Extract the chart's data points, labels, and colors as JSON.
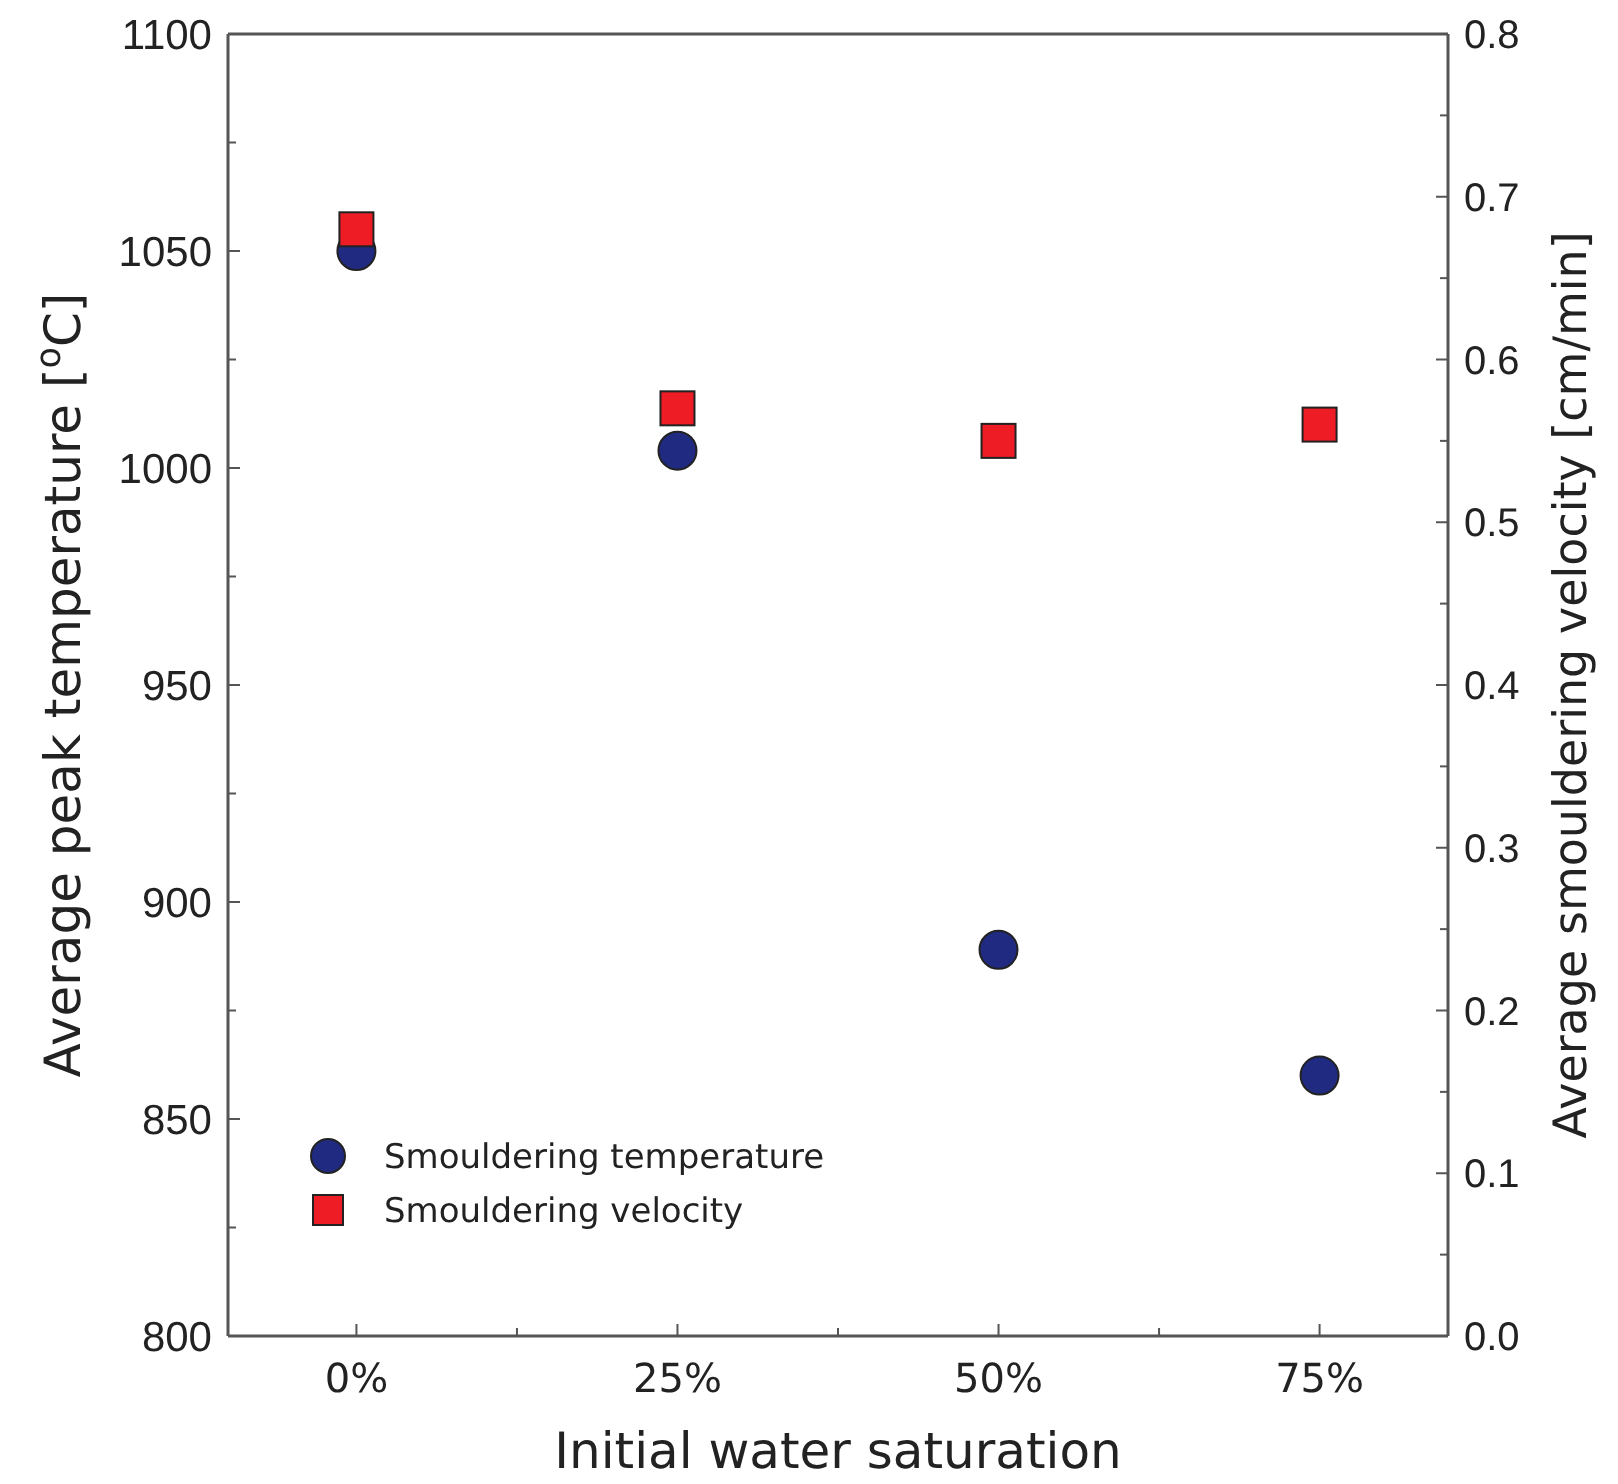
{
  "chart_data": {
    "type": "scatter",
    "xlabel": "Initial water saturation",
    "ylabel": "Average peak temperature [$^{o}$C]",
    "y2label": "Average smouldering velocity [cm/min]",
    "x": [
      0,
      25,
      50,
      75
    ],
    "xlim": [
      -10,
      85
    ],
    "xticks": [
      {
        "value": 0,
        "label": "0%"
      },
      {
        "value": 12.5,
        "label": null
      },
      {
        "value": 25,
        "label": "25%"
      },
      {
        "value": 37.5,
        "label": null
      },
      {
        "value": 50,
        "label": "50%"
      },
      {
        "value": 62.5,
        "label": null
      },
      {
        "value": 75,
        "label": "75%"
      }
    ],
    "ylim": [
      800,
      1100
    ],
    "yticks": [
      800,
      {
        "value": 825,
        "label": null
      },
      850,
      {
        "value": 875,
        "label": null
      },
      900,
      {
        "value": 925,
        "label": null
      },
      950,
      {
        "value": 975,
        "label": null
      },
      1000,
      {
        "value": 1025,
        "label": null
      },
      1050,
      {
        "value": 1075,
        "label": null
      },
      1100
    ],
    "y2lim": [
      0,
      0.8
    ],
    "y2ticks": [
      {
        "value": 0,
        "label": "0.0"
      },
      {
        "value": 0.05,
        "label": null
      },
      0.1,
      {
        "value": 0.15,
        "label": null
      },
      0.2,
      {
        "value": 0.25,
        "label": null
      },
      0.3,
      {
        "value": 0.35,
        "label": null
      },
      0.4,
      {
        "value": 0.45,
        "label": null
      },
      0.5,
      {
        "value": 0.55,
        "label": null
      },
      0.6,
      {
        "value": 0.65,
        "label": null
      },
      0.7,
      {
        "value": 0.75,
        "label": null
      },
      0.8
    ],
    "legend": "bottom left",
    "grid": false,
    "series": [
      {
        "name": "Smouldering temperature",
        "color": "#1f2a80",
        "marker": "circle",
        "values": [
          1050,
          1004,
          889,
          860
        ]
      },
      {
        "name": "Smouldering velocity",
        "color": "#ee1c25",
        "marker": "square",
        "axis": "y2",
        "values": [
          0.68,
          0.57,
          0.55,
          0.56
        ]
      }
    ]
  }
}
